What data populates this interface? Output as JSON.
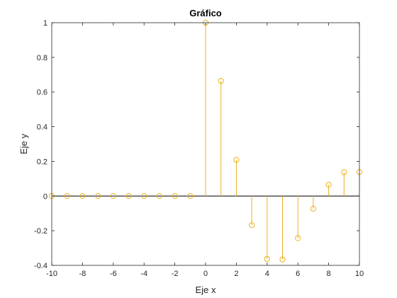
{
  "chart_data": {
    "type": "stem",
    "title": "Gráfico",
    "xlabel": "Eje x",
    "ylabel": "Eje y",
    "xlim": [
      -10,
      10
    ],
    "ylim": [
      -0.4,
      1
    ],
    "xticks": [
      "-10",
      "-8",
      "-6",
      "-4",
      "-2",
      "0",
      "2",
      "4",
      "6",
      "8",
      "10"
    ],
    "yticks": [
      "-0.4",
      "-0.2",
      "0",
      "0.2",
      "0.4",
      "0.6",
      "0.8",
      "1"
    ],
    "grid": false,
    "marker": "circle",
    "color": "#EDB120",
    "baseline_color": "#000000",
    "x": [
      -10,
      -9,
      -8,
      -7,
      -6,
      -5,
      -4,
      -3,
      -2,
      -1,
      0,
      1,
      2,
      3,
      4,
      5,
      6,
      7,
      8,
      9,
      10
    ],
    "y": [
      0,
      0,
      0,
      0,
      0,
      0,
      0,
      0,
      0,
      0,
      1,
      0.664,
      0.209,
      -0.168,
      -0.363,
      -0.366,
      -0.243,
      -0.073,
      0.065,
      0.137,
      0.138
    ]
  }
}
